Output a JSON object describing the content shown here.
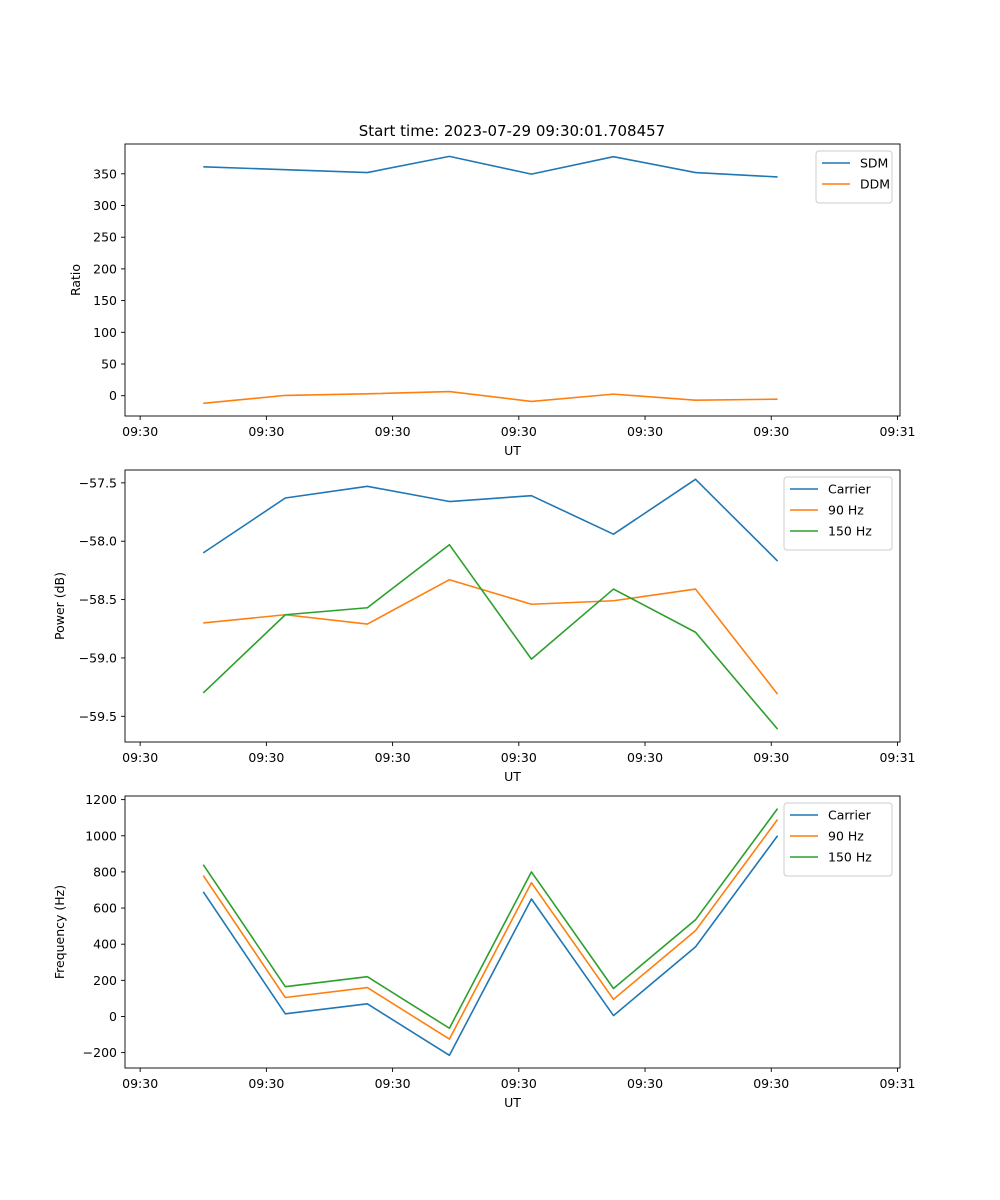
{
  "figure_title": "Start time: 2023-07-29 09:30:01.708457",
  "chart_data": [
    {
      "type": "line",
      "name": "sdm-ddm",
      "title": "Start time: 2023-07-29 09:30:01.708457",
      "xlabel": "UT",
      "ylabel": "Ratio",
      "x": [
        0.5,
        1.15,
        1.8,
        2.45,
        3.1,
        3.75,
        4.4,
        5.05
      ],
      "xlim": [
        -0.12,
        6.02
      ],
      "xticks": [
        0,
        1,
        2,
        3,
        4,
        5,
        6
      ],
      "xtick_labels": [
        "09:30",
        "09:30",
        "09:30",
        "09:30",
        "09:30",
        "09:30",
        "09:31"
      ],
      "ylim": [
        -32,
        397
      ],
      "yticks": [
        0,
        50,
        100,
        150,
        200,
        250,
        300,
        350
      ],
      "ytick_labels": [
        "0",
        "50",
        "100",
        "150",
        "200",
        "250",
        "300",
        "350"
      ],
      "legend_position": "top-right",
      "series": [
        {
          "name": "SDM",
          "color": "#1f77b4",
          "values": [
            361,
            356.5,
            352,
            377.5,
            349.5,
            377,
            352,
            345
          ]
        },
        {
          "name": "DDM",
          "color": "#ff7f0e",
          "values": [
            -12,
            0.5,
            3,
            6.5,
            -9,
            2.5,
            -7,
            -5.5
          ]
        }
      ]
    },
    {
      "type": "line",
      "name": "power",
      "title": "",
      "xlabel": "UT",
      "ylabel": "Power (dB)",
      "x": [
        0.5,
        1.15,
        1.8,
        2.45,
        3.1,
        3.75,
        4.4,
        5.05
      ],
      "xlim": [
        -0.12,
        6.02
      ],
      "xticks": [
        0,
        1,
        2,
        3,
        4,
        5,
        6
      ],
      "xtick_labels": [
        "09:30",
        "09:30",
        "09:30",
        "09:30",
        "09:30",
        "09:30",
        "09:31"
      ],
      "ylim": [
        -59.72,
        -57.39
      ],
      "yticks": [
        -59.5,
        -59.0,
        -58.5,
        -58.0,
        -57.5
      ],
      "ytick_labels": [
        "−59.5",
        "−59.0",
        "−58.5",
        "−58.0",
        "−57.5"
      ],
      "legend_position": "top-right",
      "series": [
        {
          "name": "Carrier",
          "color": "#1f77b4",
          "values": [
            -58.1,
            -57.63,
            -57.53,
            -57.66,
            -57.61,
            -57.94,
            -57.47,
            -58.17
          ]
        },
        {
          "name": "90 Hz",
          "color": "#ff7f0e",
          "values": [
            -58.7,
            -58.63,
            -58.71,
            -58.33,
            -58.54,
            -58.51,
            -58.41,
            -59.31
          ]
        },
        {
          "name": "150 Hz",
          "color": "#2ca02c",
          "values": [
            -59.3,
            -58.63,
            -58.57,
            -58.03,
            -59.01,
            -58.41,
            -58.78,
            -59.61
          ]
        }
      ]
    },
    {
      "type": "line",
      "name": "frequency",
      "title": "",
      "xlabel": "UT",
      "ylabel": "Frequency (Hz)",
      "x": [
        0.5,
        1.15,
        1.8,
        2.45,
        3.1,
        3.75,
        4.4,
        5.05
      ],
      "xlim": [
        -0.12,
        6.02
      ],
      "xticks": [
        0,
        1,
        2,
        3,
        4,
        5,
        6
      ],
      "xtick_labels": [
        "09:30",
        "09:30",
        "09:30",
        "09:30",
        "09:30",
        "09:30",
        "09:31"
      ],
      "ylim": [
        -285,
        1220
      ],
      "yticks": [
        -200,
        0,
        200,
        400,
        600,
        800,
        1000,
        1200
      ],
      "ytick_labels": [
        "−200",
        "0",
        "200",
        "400",
        "600",
        "800",
        "1000",
        "1200"
      ],
      "legend_position": "top-right",
      "series": [
        {
          "name": "Carrier",
          "color": "#1f77b4",
          "values": [
            690,
            15,
            70,
            -215,
            650,
            5,
            385,
            1000
          ]
        },
        {
          "name": "90 Hz",
          "color": "#ff7f0e",
          "values": [
            780,
            105,
            160,
            -125,
            740,
            95,
            475,
            1090
          ]
        },
        {
          "name": "150 Hz",
          "color": "#2ca02c",
          "values": [
            840,
            165,
            220,
            -65,
            800,
            155,
            535,
            1150
          ]
        }
      ]
    }
  ]
}
